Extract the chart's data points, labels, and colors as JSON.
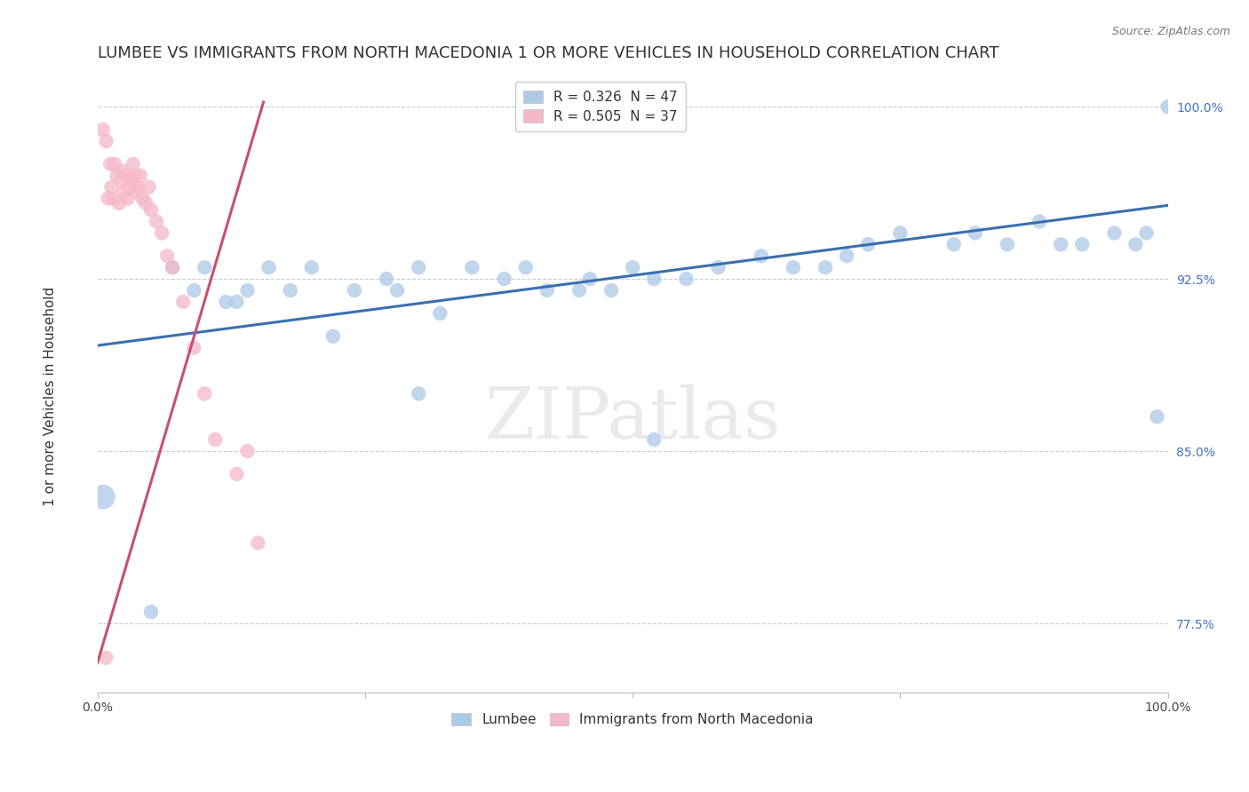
{
  "title": "LUMBEE VS IMMIGRANTS FROM NORTH MACEDONIA 1 OR MORE VEHICLES IN HOUSEHOLD CORRELATION CHART",
  "source_text": "Source: ZipAtlas.com",
  "ylabel": "1 or more Vehicles in Household",
  "watermark": "ZIPatlas",
  "xlim": [
    0.0,
    1.0
  ],
  "ylim": [
    0.745,
    1.015
  ],
  "xticks": [
    0.0,
    0.25,
    0.5,
    0.75,
    1.0
  ],
  "xtick_labels": [
    "0.0%",
    "",
    "",
    "",
    "100.0%"
  ],
  "ytick_labels": [
    "77.5%",
    "85.0%",
    "92.5%",
    "100.0%"
  ],
  "yticks": [
    0.775,
    0.85,
    0.925,
    1.0
  ],
  "legend_entries": [
    {
      "label": "R = 0.326  N = 47",
      "color": "#adc9e8"
    },
    {
      "label": "R = 0.505  N = 37",
      "color": "#f5b8c8"
    }
  ],
  "blue_scatter_x": [
    0.005,
    0.05,
    0.07,
    0.09,
    0.1,
    0.12,
    0.13,
    0.14,
    0.16,
    0.18,
    0.2,
    0.22,
    0.24,
    0.27,
    0.28,
    0.3,
    0.32,
    0.35,
    0.38,
    0.4,
    0.42,
    0.45,
    0.46,
    0.48,
    0.5,
    0.52,
    0.55,
    0.58,
    0.62,
    0.65,
    0.68,
    0.7,
    0.72,
    0.75,
    0.8,
    0.82,
    0.85,
    0.88,
    0.9,
    0.92,
    0.95,
    0.97,
    0.98,
    0.99,
    1.0,
    0.52,
    0.3
  ],
  "blue_scatter_y": [
    0.83,
    0.78,
    0.93,
    0.92,
    0.93,
    0.915,
    0.915,
    0.92,
    0.93,
    0.92,
    0.93,
    0.9,
    0.92,
    0.925,
    0.92,
    0.93,
    0.91,
    0.93,
    0.925,
    0.93,
    0.92,
    0.92,
    0.925,
    0.92,
    0.93,
    0.925,
    0.925,
    0.93,
    0.935,
    0.93,
    0.93,
    0.935,
    0.94,
    0.945,
    0.94,
    0.945,
    0.94,
    0.95,
    0.94,
    0.94,
    0.945,
    0.94,
    0.945,
    0.865,
    1.0,
    0.855,
    0.875
  ],
  "blue_line_x": [
    0.0,
    1.0
  ],
  "blue_line_y_start": 0.896,
  "blue_line_y_end": 0.957,
  "pink_scatter_x": [
    0.005,
    0.008,
    0.01,
    0.012,
    0.013,
    0.015,
    0.016,
    0.018,
    0.02,
    0.022,
    0.023,
    0.025,
    0.027,
    0.028,
    0.03,
    0.032,
    0.033,
    0.035,
    0.036,
    0.038,
    0.04,
    0.042,
    0.045,
    0.048,
    0.05,
    0.055,
    0.06,
    0.065,
    0.07,
    0.08,
    0.09,
    0.1,
    0.11,
    0.13,
    0.14,
    0.15,
    0.008
  ],
  "pink_scatter_y": [
    0.99,
    0.985,
    0.96,
    0.975,
    0.965,
    0.96,
    0.975,
    0.97,
    0.958,
    0.968,
    0.972,
    0.963,
    0.97,
    0.96,
    0.965,
    0.968,
    0.975,
    0.97,
    0.963,
    0.965,
    0.97,
    0.96,
    0.958,
    0.965,
    0.955,
    0.95,
    0.945,
    0.935,
    0.93,
    0.915,
    0.895,
    0.875,
    0.855,
    0.84,
    0.85,
    0.81,
    0.76
  ],
  "pink_line_x": [
    0.0,
    0.155
  ],
  "pink_line_y_start": 0.758,
  "pink_line_y_end": 1.002,
  "blue_color": "#adc9e8",
  "blue_line_color": "#3a6fb0",
  "pink_color": "#f5b8c8",
  "pink_line_color": "#c8506a",
  "scatter_size": 140,
  "big_blue_size": 400,
  "title_fontsize": 13,
  "axis_label_fontsize": 11,
  "tick_fontsize": 10,
  "legend_fontsize": 11
}
